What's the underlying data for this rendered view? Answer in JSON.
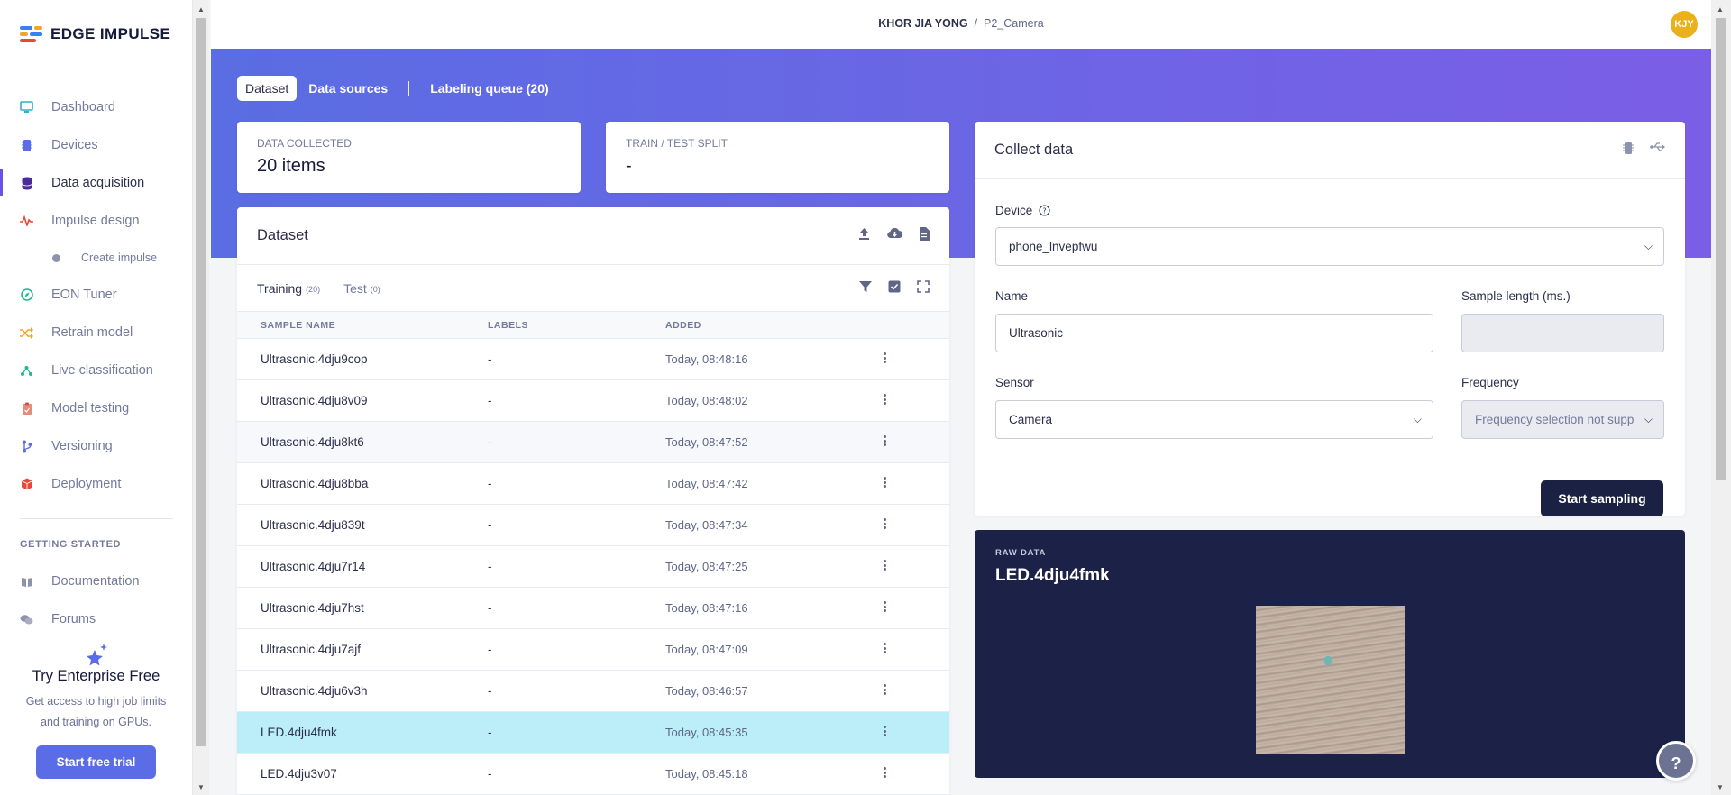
{
  "app": {
    "logo_text": "EDGE IMPULSE"
  },
  "sidebar": {
    "items": [
      {
        "label": "Dashboard",
        "icon": "monitor-icon"
      },
      {
        "label": "Devices",
        "icon": "chip-icon"
      },
      {
        "label": "Data acquisition",
        "icon": "database-icon",
        "active": true
      },
      {
        "label": "Impulse design",
        "icon": "pulse-icon"
      }
    ],
    "sub_items": [
      {
        "label": "Create impulse"
      }
    ],
    "items_after": [
      {
        "label": "EON Tuner",
        "icon": "compass-icon"
      },
      {
        "label": "Retrain model",
        "icon": "shuffle-icon"
      },
      {
        "label": "Live classification",
        "icon": "network-icon"
      },
      {
        "label": "Model testing",
        "icon": "clipboard-icon"
      },
      {
        "label": "Versioning",
        "icon": "branch-icon"
      },
      {
        "label": "Deployment",
        "icon": "cube-icon"
      }
    ],
    "getting_started_heading": "GETTING STARTED",
    "getting_started": [
      {
        "label": "Documentation",
        "icon": "book-icon"
      },
      {
        "label": "Forums",
        "icon": "chat-icon"
      }
    ],
    "promo": {
      "title": "Try Enterprise Free",
      "text_line1": "Get access to high job limits",
      "text_line2": "and training on GPUs.",
      "button": "Start free trial"
    }
  },
  "header": {
    "user": "KHOR JIA YONG",
    "sep": "/",
    "project": "P2_Camera",
    "avatar": "KJY"
  },
  "tabs": {
    "dataset": "Dataset",
    "data_sources": "Data sources",
    "labeling_queue": "Labeling queue (20)"
  },
  "stats": {
    "collected_label": "DATA COLLECTED",
    "collected_value": "20 items",
    "split_label": "TRAIN / TEST SPLIT",
    "split_value": "-"
  },
  "dataset": {
    "title": "Dataset",
    "training_label": "Training",
    "training_count": "(20)",
    "test_label": "Test",
    "test_count": "(0)",
    "columns": [
      "SAMPLE NAME",
      "LABELS",
      "ADDED"
    ],
    "rows": [
      {
        "name": "Ultrasonic.4dju9cop",
        "label": "-",
        "added": "Today, 08:48:16"
      },
      {
        "name": "Ultrasonic.4dju8v09",
        "label": "-",
        "added": "Today, 08:48:02"
      },
      {
        "name": "Ultrasonic.4dju8kt6",
        "label": "-",
        "added": "Today, 08:47:52"
      },
      {
        "name": "Ultrasonic.4dju8bba",
        "label": "-",
        "added": "Today, 08:47:42"
      },
      {
        "name": "Ultrasonic.4dju839t",
        "label": "-",
        "added": "Today, 08:47:34"
      },
      {
        "name": "Ultrasonic.4dju7r14",
        "label": "-",
        "added": "Today, 08:47:25"
      },
      {
        "name": "Ultrasonic.4dju7hst",
        "label": "-",
        "added": "Today, 08:47:16"
      },
      {
        "name": "Ultrasonic.4dju7ajf",
        "label": "-",
        "added": "Today, 08:47:09"
      },
      {
        "name": "Ultrasonic.4dju6v3h",
        "label": "-",
        "added": "Today, 08:46:57"
      },
      {
        "name": "LED.4dju4fmk",
        "label": "-",
        "added": "Today, 08:45:35"
      },
      {
        "name": "LED.4dju3v07",
        "label": "-",
        "added": "Today, 08:45:18"
      }
    ]
  },
  "collect": {
    "title": "Collect data",
    "device_label": "Device",
    "device_value": "phone_lnvepfwu",
    "name_label": "Name",
    "name_value": "Ultrasonic",
    "sample_length_label": "Sample length (ms.)",
    "sample_length_value": "",
    "sensor_label": "Sensor",
    "sensor_value": "Camera",
    "frequency_label": "Frequency",
    "frequency_value": "Frequency selection not supp",
    "start_button": "Start sampling"
  },
  "raw_data": {
    "label": "RAW DATA",
    "title": "LED.4dju4fmk"
  },
  "colors": {
    "accent": "#5a6de6",
    "hero_start": "#5a6de3",
    "hero_end": "#7b5ee6",
    "dark": "#1b2147",
    "highlight_row": "#bbeef9"
  }
}
